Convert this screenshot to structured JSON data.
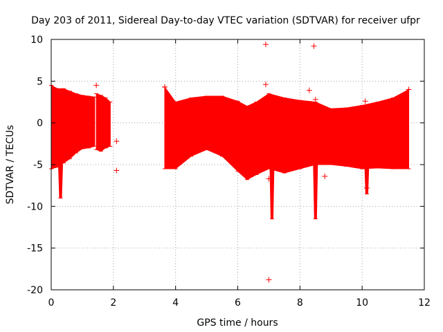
{
  "chart_data": {
    "type": "scatter",
    "title": "Day 203 of 2011, Sidereal Day-to-day VTEC variation (SDTVAR) for receiver ufpr",
    "xlabel": "GPS time / hours",
    "ylabel": "SDTVAR / TECUs",
    "xlim": [
      0,
      12
    ],
    "ylim": [
      -20,
      10
    ],
    "xticks": [
      "0",
      "2",
      "4",
      "6",
      "8",
      "10",
      "12"
    ],
    "yticks": [
      "10",
      "5",
      "0",
      "-5",
      "-10",
      "-15",
      "-20"
    ],
    "grid": true,
    "series_color": "#ff0000",
    "envelope_segments": [
      {
        "name": "segment-1",
        "x": [
          0.0,
          0.2,
          0.4,
          0.6,
          0.8,
          1.0,
          1.2,
          1.4
        ],
        "upper": [
          4.5,
          4.1,
          4.1,
          3.8,
          3.5,
          3.3,
          3.2,
          3.1
        ],
        "lower": [
          -5.5,
          -5.3,
          -4.8,
          -4.3,
          -3.6,
          -3.1,
          -3.0,
          -2.8
        ]
      },
      {
        "name": "segment-2",
        "x": [
          1.45,
          1.6,
          1.75,
          1.9
        ],
        "upper": [
          3.5,
          3.3,
          3.0,
          2.5
        ],
        "lower": [
          -3.2,
          -3.4,
          -3.0,
          -2.8
        ]
      },
      {
        "name": "segment-3",
        "x": [
          3.65,
          4.0,
          4.5,
          5.0,
          5.5,
          6.0,
          6.3,
          6.6,
          7.0,
          7.5,
          8.0,
          8.5,
          9.0,
          9.5,
          10.0,
          10.5,
          11.0,
          11.5
        ],
        "upper": [
          4.3,
          2.5,
          3.0,
          3.2,
          3.2,
          2.6,
          2.0,
          2.5,
          3.5,
          3.0,
          2.7,
          2.5,
          1.7,
          1.8,
          2.1,
          2.5,
          3.0,
          4.0
        ],
        "lower": [
          -5.5,
          -5.5,
          -4.0,
          -3.2,
          -4.0,
          -5.8,
          -6.8,
          -6.2,
          -5.5,
          -6.0,
          -5.5,
          -5.0,
          -5.0,
          -5.2,
          -5.5,
          -5.4,
          -5.5,
          -5.5
        ]
      }
    ],
    "dips": [
      {
        "x": 0.3,
        "y": -9.0
      },
      {
        "x": 7.1,
        "y": -11.5
      },
      {
        "x": 8.5,
        "y": -11.5
      },
      {
        "x": 10.15,
        "y": -8.5
      }
    ],
    "outliers": [
      {
        "x": 6.9,
        "y": 9.4
      },
      {
        "x": 8.45,
        "y": 9.2
      },
      {
        "x": 7.0,
        "y": -18.8
      },
      {
        "x": 1.45,
        "y": 4.5
      },
      {
        "x": 2.1,
        "y": -2.2
      },
      {
        "x": 2.1,
        "y": -5.7
      },
      {
        "x": 8.3,
        "y": 3.9
      },
      {
        "x": 6.9,
        "y": 4.6
      },
      {
        "x": 8.5,
        "y": 2.8
      },
      {
        "x": 7.0,
        "y": -6.7
      },
      {
        "x": 8.8,
        "y": -6.4
      },
      {
        "x": 10.1,
        "y": 2.6
      },
      {
        "x": 10.15,
        "y": -7.8
      },
      {
        "x": 11.5,
        "y": 4.0
      },
      {
        "x": 3.65,
        "y": 4.3
      }
    ]
  }
}
